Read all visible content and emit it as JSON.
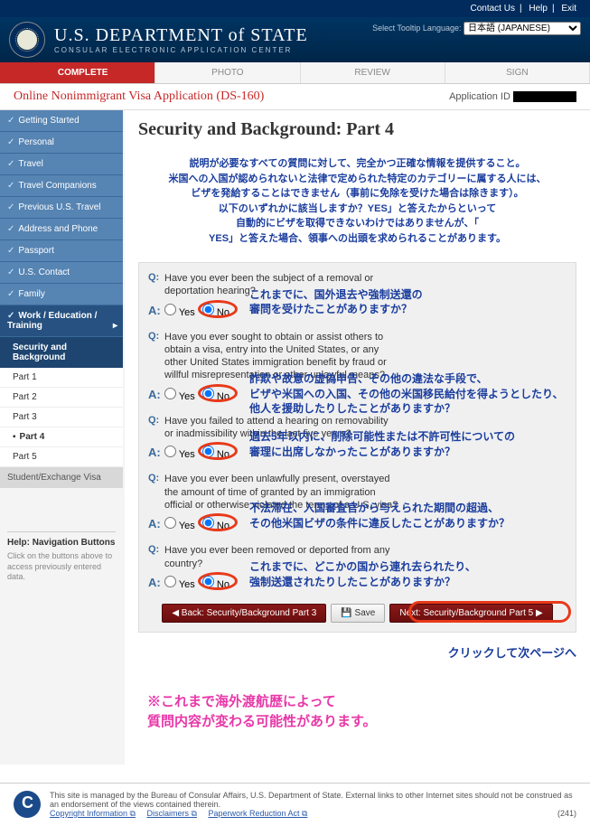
{
  "topbar": {
    "contact": "Contact Us",
    "help": "Help",
    "exit": "Exit"
  },
  "header": {
    "title": "U.S. DEPARTMENT of STATE",
    "subtitle": "CONSULAR ELECTRONIC APPLICATION CENTER",
    "lang_label": "Select Tooltip Language:",
    "lang_value": "日本語 (JAPANESE)"
  },
  "tabs": {
    "complete": "COMPLETE",
    "photo": "PHOTO",
    "review": "REVIEW",
    "sign": "SIGN"
  },
  "title_row": {
    "app_title": "Online Nonimmigrant Visa Application (DS-160)",
    "app_id_label": "Application ID"
  },
  "sidebar": {
    "items": [
      "Getting Started",
      "Personal",
      "Travel",
      "Travel Companions",
      "Previous U.S. Travel",
      "Address and Phone",
      "Passport",
      "U.S. Contact",
      "Family",
      "Work / Education / Training"
    ],
    "sub": "Security and Background",
    "parts": [
      "Part 1",
      "Part 2",
      "Part 3",
      "Part 4",
      "Part 5"
    ],
    "student": "Student/Exchange Visa"
  },
  "help": {
    "title": "Help: Navigation Buttons",
    "text": "Click on the buttons above to access previously entered data."
  },
  "page": {
    "heading": "Security and Background: Part 4",
    "instructions": "説明が必要なすべての質問に対して、完全かつ正確な情報を提供すること。\n米国への入国が認められないと法律で定められた特定のカテゴリーに属する人には、\nビザを発給することはできません（事前に免除を受けた場合は除きます）。\n以下のいずれかに該当しますか？YES」と答えたからといって\n自動的にビザを取得できないわけではありませんが、「\nYES」と答えた場合、領事への出頭を求められることがあります。"
  },
  "questions": [
    {
      "q": "Have you ever been the subject of a removal or deportation hearing?",
      "anno": "これまでに、国外退去や強制送還の\n審問を受けたことがありますか？"
    },
    {
      "q": "Have you ever sought to obtain or assist others to obtain a visa, entry into the United States, or any other United States immigration benefit by fraud or willful misrepresentation or other unlawful means?",
      "anno": "詐欺や故意の虚偽申告、その他の違法な手段で、\nビザや米国への入国、その他の米国移民給付を得ようとしたり、\n他人を援助したりしたことがありますか？"
    },
    {
      "q": "Have you failed to attend a hearing on removability or inadmissibility within the last five years?",
      "anno": "過去5年以内に、削除可能性または不許可性についての\n審理に出席しなかったことがありますか？"
    },
    {
      "q": "Have you ever been unlawfully present, overstayed the amount of time of granted by an immigration official or otherwise violated the terms of a U.S. visa?",
      "anno": "不法滞在、入国審査官から与えられた期間の超過、\nその他米国ビザの条件に違反したことがありますか？"
    },
    {
      "q": "Have you ever been removed or deported from any country?",
      "anno": "これまでに、どこかの国から連れ去られたり、\n強制送還されたりしたことがありますか？"
    }
  ],
  "radio": {
    "yes": "Yes",
    "no": "No"
  },
  "buttons": {
    "back": "◀ Back: Security/Background Part 3",
    "save": "💾 Save",
    "next": "Next: Security/Background Part 5 ▶"
  },
  "click_note": "クリックして次ページへ",
  "pink_note": "※これまで海外渡航歴によって\n質問内容が変わる可能性があります。",
  "footer": {
    "text": "This site is managed by the Bureau of Consular Affairs, U.S. Department of State. External links to other Internet sites should not be construed as an endorsement of the views contained therein.",
    "links": [
      "Copyright Information ⧉",
      "Disclaimers ⧉",
      "Paperwork Reduction Act ⧉"
    ],
    "num": "(241)"
  }
}
